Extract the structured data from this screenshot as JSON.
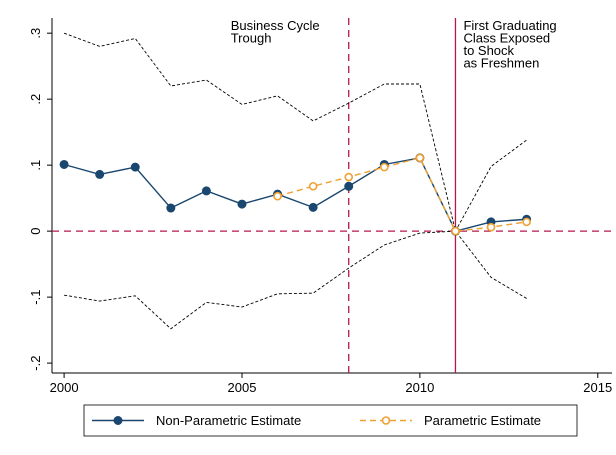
{
  "chart_data": {
    "type": "line",
    "x": [
      2000,
      2001,
      2002,
      2003,
      2004,
      2005,
      2006,
      2007,
      2008,
      2009,
      2010,
      2011,
      2012,
      2013
    ],
    "series": [
      {
        "name": "Non-Parametric Estimate",
        "color": "#1a476f",
        "marker": "filled",
        "values": [
          0.101,
          0.086,
          0.097,
          0.035,
          0.061,
          0.041,
          0.056,
          0.036,
          0.068,
          0.101,
          0.111,
          0,
          0.014,
          0.018
        ]
      },
      {
        "name": "Parametric Estimate",
        "color": "#f0a030",
        "marker": "hollow",
        "dash": true,
        "values": [
          null,
          null,
          null,
          null,
          null,
          null,
          0.053,
          0.068,
          0.082,
          0.097,
          0.111,
          0,
          0.006,
          0.014
        ]
      }
    ],
    "bands": [
      {
        "color": "#000000",
        "values": [
          0.3,
          0.28,
          0.292,
          0.22,
          0.229,
          0.192,
          0.205,
          0.167,
          0.194,
          0.223,
          0.223,
          0,
          0.098,
          0.138
        ]
      },
      {
        "color": "#000000",
        "values": [
          -0.097,
          -0.106,
          -0.098,
          -0.148,
          -0.108,
          -0.115,
          -0.095,
          -0.094,
          -0.056,
          -0.021,
          -0.003,
          0,
          -0.07,
          -0.102
        ]
      }
    ],
    "xlim": [
      1999.66,
      2015.4
    ],
    "ylim": [
      -0.215,
      0.323
    ],
    "xticks": [
      2000,
      2005,
      2010,
      2015
    ],
    "yticks": [
      {
        "value": -0.2,
        "label": "-.2"
      },
      {
        "value": -0.1,
        "label": "-.1"
      },
      0,
      {
        "value": 0.1,
        "label": ".1"
      },
      {
        "value": 0.2,
        "label": ".2"
      },
      {
        "value": 0.3,
        "label": ".3"
      }
    ],
    "reference_color": "#b5174e",
    "hline": 0,
    "vlines": [
      {
        "x": 2008,
        "style": "dash",
        "label": [
          "Business Cycle",
          "Trough"
        ]
      },
      {
        "x": 2011,
        "style": "solid",
        "label": [
          "First Graduating",
          "Class Exposed",
          "to Shock",
          "as Freshmen"
        ]
      }
    ]
  }
}
